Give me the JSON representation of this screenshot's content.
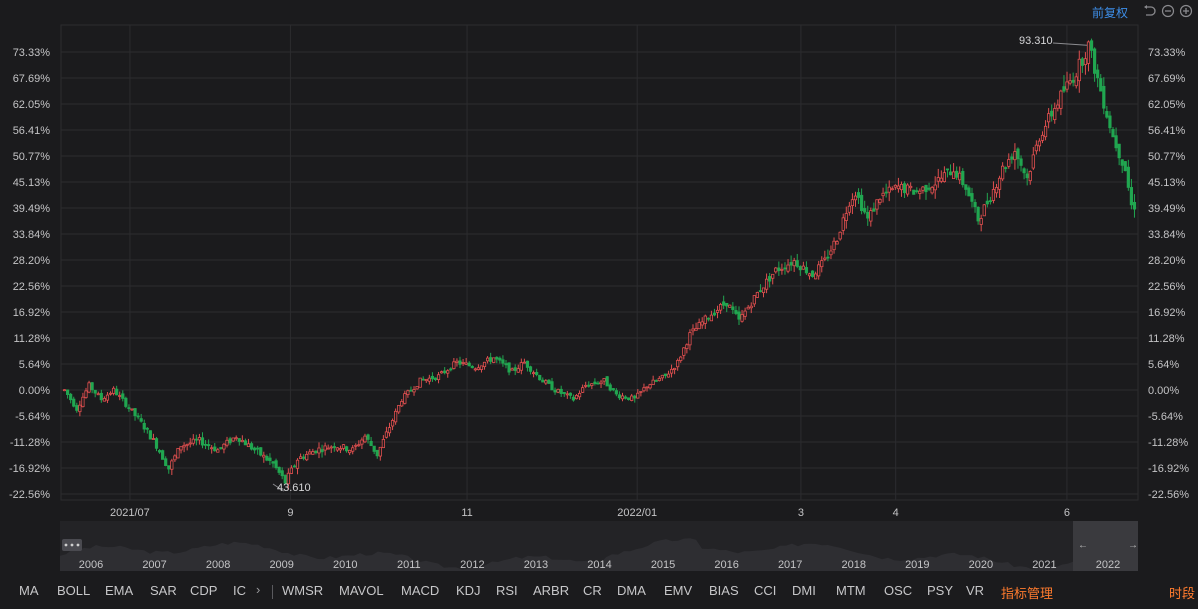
{
  "toolbar": {
    "fq_label": "前复权",
    "icons": [
      "undo-icon",
      "zoom-out-icon",
      "zoom-in-icon"
    ]
  },
  "chart_data": {
    "type": "candlestick",
    "y_axis_ticks": [
      "73.33%",
      "67.69%",
      "62.05%",
      "56.41%",
      "50.77%",
      "45.13%",
      "39.49%",
      "33.84%",
      "28.20%",
      "22.56%",
      "16.92%",
      "11.28%",
      "5.64%",
      "0.00%",
      "-5.64%",
      "-11.28%",
      "-16.92%",
      "-22.56%"
    ],
    "y_range": [
      -22.56,
      73.33
    ],
    "x_axis_ticks": [
      {
        "label": "2021/07",
        "pos": 0.064
      },
      {
        "label": "9",
        "pos": 0.213
      },
      {
        "label": "11",
        "pos": 0.377
      },
      {
        "label": "2022/01",
        "pos": 0.535
      },
      {
        "label": "3",
        "pos": 0.687
      },
      {
        "label": "4",
        "pos": 0.775
      },
      {
        "label": "6",
        "pos": 0.934
      }
    ],
    "annotations": [
      {
        "label": "93.310",
        "y": 74.8,
        "kind": "high"
      },
      {
        "label": "43.610",
        "y": -21.5,
        "kind": "low"
      }
    ],
    "series_path": [
      [
        0,
        0
      ],
      [
        4,
        -4
      ],
      [
        8,
        1
      ],
      [
        12,
        -2
      ],
      [
        16,
        0
      ],
      [
        20,
        -3
      ],
      [
        26,
        -8
      ],
      [
        30,
        -12
      ],
      [
        34,
        -17
      ],
      [
        38,
        -12
      ],
      [
        44,
        -11
      ],
      [
        50,
        -13
      ],
      [
        56,
        -10
      ],
      [
        62,
        -13
      ],
      [
        68,
        -16
      ],
      [
        72,
        -20
      ],
      [
        76,
        -15
      ],
      [
        82,
        -13
      ],
      [
        88,
        -12
      ],
      [
        94,
        -13
      ],
      [
        98,
        -10
      ],
      [
        102,
        -14
      ],
      [
        106,
        -8
      ],
      [
        110,
        -2
      ],
      [
        116,
        2
      ],
      [
        122,
        3
      ],
      [
        128,
        6
      ],
      [
        134,
        5
      ],
      [
        140,
        7
      ],
      [
        146,
        4
      ],
      [
        150,
        6
      ],
      [
        156,
        2
      ],
      [
        160,
        0
      ],
      [
        166,
        -2
      ],
      [
        170,
        1
      ],
      [
        176,
        2
      ],
      [
        180,
        -1
      ],
      [
        186,
        -2
      ],
      [
        190,
        1
      ],
      [
        196,
        3
      ],
      [
        200,
        6
      ],
      [
        204,
        12
      ],
      [
        210,
        16
      ],
      [
        216,
        19
      ],
      [
        220,
        15
      ],
      [
        226,
        21
      ],
      [
        232,
        26
      ],
      [
        238,
        28
      ],
      [
        244,
        25
      ],
      [
        248,
        28
      ],
      [
        252,
        33
      ],
      [
        256,
        41
      ],
      [
        258,
        43
      ],
      [
        262,
        37
      ],
      [
        266,
        42
      ],
      [
        272,
        44
      ],
      [
        278,
        43
      ],
      [
        284,
        45
      ],
      [
        290,
        48
      ],
      [
        294,
        44
      ],
      [
        298,
        37
      ],
      [
        302,
        42
      ],
      [
        306,
        48
      ],
      [
        310,
        52
      ],
      [
        314,
        46
      ],
      [
        318,
        55
      ],
      [
        322,
        60
      ],
      [
        326,
        65
      ],
      [
        330,
        69
      ],
      [
        334,
        74.8
      ],
      [
        338,
        65
      ],
      [
        342,
        55
      ],
      [
        346,
        48
      ],
      [
        348,
        40
      ]
    ]
  },
  "navigator": {
    "years": [
      "2006",
      "2007",
      "2008",
      "2009",
      "2010",
      "2011",
      "2012",
      "2013",
      "2014",
      "2015",
      "2016",
      "2017",
      "2018",
      "2019",
      "2020",
      "2021",
      "2022"
    ],
    "handle_icon": "ellipsis-icon"
  },
  "indicators": [
    "MA",
    "BOLL",
    "EMA",
    "SAR",
    "CDP",
    "IC",
    "WMSR",
    "MAVOL",
    "MACD",
    "KDJ",
    "RSI",
    "ARBR",
    "CR",
    "DMA",
    "EMV",
    "BIAS",
    "CCI",
    "DMI",
    "MTM",
    "OSC",
    "PSY",
    "VR"
  ],
  "indicator_manage_label": "指标管理",
  "period_label": "时段",
  "colors": {
    "up": "#e04f4f",
    "down": "#21a650",
    "background": "#1b1b1d",
    "grid": "#2c2c2f",
    "accent_blue": "#3d8ee8",
    "orange": "#ff7b2e"
  }
}
